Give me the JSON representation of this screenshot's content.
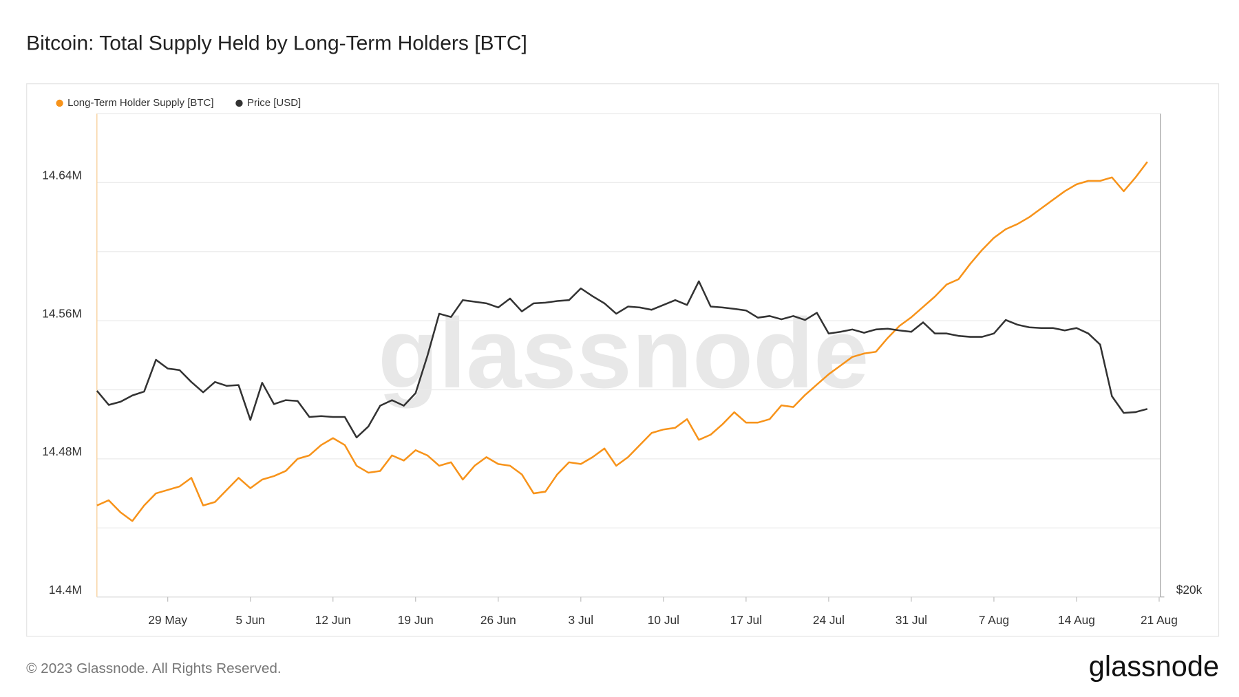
{
  "chart_data": {
    "type": "line",
    "title": "Bitcoin: Total Supply Held by Long-Term Holders [BTC]",
    "categories": [
      null,
      null,
      null,
      null,
      null,
      null,
      "29 May",
      null,
      null,
      null,
      null,
      null,
      null,
      "5 Jun",
      null,
      null,
      null,
      null,
      null,
      null,
      "12 Jun",
      null,
      null,
      null,
      null,
      null,
      null,
      "19 Jun",
      null,
      null,
      null,
      null,
      null,
      null,
      "26 Jun",
      null,
      null,
      null,
      null,
      null,
      null,
      "3 Jul",
      null,
      null,
      null,
      null,
      null,
      null,
      "10 Jul",
      null,
      null,
      null,
      null,
      null,
      null,
      "17 Jul",
      null,
      null,
      null,
      null,
      null,
      null,
      "24 Jul",
      null,
      null,
      null,
      null,
      null,
      null,
      "31 Jul",
      null,
      null,
      null,
      null,
      null,
      null,
      "7 Aug",
      null,
      null,
      null,
      null,
      null,
      null,
      "14 Aug",
      null,
      null,
      null,
      null,
      null,
      null,
      "21 Aug"
    ],
    "series": [
      {
        "name": "Long-Term Holder Supply [BTC]",
        "color": "#f7931a",
        "axis": "y",
        "values": [
          14453000,
          14456000,
          14449000,
          14444000,
          14453000,
          14460000,
          14462000,
          14464000,
          14469000,
          14453000,
          14455000,
          14462000,
          14469000,
          14463000,
          14468000,
          14470000,
          14473000,
          14480000,
          14482000,
          14488000,
          14492000,
          14488000,
          14476000,
          14472000,
          14473000,
          14482000,
          14479000,
          14485000,
          14482000,
          14476000,
          14478000,
          14468000,
          14476000,
          14481000,
          14477000,
          14476000,
          14471000,
          14460000,
          14461000,
          14471000,
          14478000,
          14477000,
          14481000,
          14486000,
          14476000,
          14481000,
          14488000,
          14495000,
          14497000,
          14498000,
          14503000,
          14491000,
          14494000,
          14500000,
          14507000,
          14501000,
          14501000,
          14503000,
          14511000,
          14510000,
          14517000,
          14523000,
          14529000,
          14534000,
          14539000,
          14541000,
          14542000,
          14550000,
          14557000,
          14562000,
          14568000,
          14574000,
          14581000,
          14584000,
          14593000,
          14601000,
          14608000,
          14613000,
          14616000,
          14620000,
          14625000,
          14630000,
          14635000,
          14639000,
          14641000,
          14641000,
          14643000,
          14635000,
          14643000,
          14652000,
          null
        ]
      },
      {
        "name": "Price [USD]",
        "color": "#333333",
        "axis": "y2",
        "values": [
          26880,
          26340,
          26460,
          26700,
          26850,
          28100,
          27750,
          27690,
          27220,
          26820,
          27220,
          27070,
          27100,
          25780,
          27190,
          26370,
          26520,
          26490,
          25890,
          25920,
          25890,
          25890,
          25140,
          25540,
          26310,
          26520,
          26310,
          26790,
          28260,
          30020,
          29880,
          30610,
          30540,
          30470,
          30290,
          30680,
          30120,
          30470,
          30500,
          30570,
          30610,
          31130,
          30780,
          30470,
          30020,
          30330,
          30290,
          30190,
          30400,
          30610,
          30400,
          31450,
          30330,
          30290,
          30230,
          30160,
          29850,
          29920,
          29780,
          29920,
          29750,
          30060,
          29180,
          29250,
          29350,
          29210,
          29350,
          29380,
          29310,
          29250,
          29650,
          29180,
          29180,
          29080,
          29040,
          29040,
          29180,
          29750,
          29550,
          29440,
          29410,
          29410,
          29310,
          29410,
          29180,
          28720,
          26670,
          26040,
          26070,
          26190,
          null
        ]
      }
    ],
    "ylim": [
      14400000,
      14680000
    ],
    "yticks": [
      {
        "value": 14400000,
        "label": "14.4M"
      },
      {
        "value": 14480000,
        "label": "14.48M"
      },
      {
        "value": 14560000,
        "label": "14.56M"
      },
      {
        "value": 14640000,
        "label": "14.64M"
      }
    ],
    "yminor": [
      14440000,
      14520000,
      14600000
    ],
    "y2lim": [
      20000,
      40000
    ],
    "y2ticks": [
      {
        "value": 20000,
        "label": "$20k"
      }
    ],
    "y2log": true,
    "grid": true,
    "legend": "top-left"
  },
  "watermark": "glassnode",
  "footer": {
    "copyright": "© 2023 Glassnode. All Rights Reserved.",
    "logo": "glassnode"
  }
}
